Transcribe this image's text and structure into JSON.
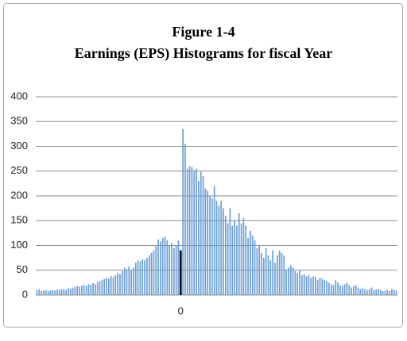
{
  "chart_data": {
    "type": "bar",
    "title": "Figure 1-4",
    "subtitle": "Earnings (EPS) Histograms for fiscal Year",
    "categories": [
      null,
      null,
      null,
      null,
      null,
      null,
      null,
      null,
      null,
      null,
      null,
      null,
      null,
      null,
      null,
      null,
      null,
      null,
      null,
      null,
      null,
      null,
      null,
      null,
      null,
      null,
      null,
      null,
      null,
      null,
      null,
      null,
      null,
      null,
      null,
      null,
      null,
      null,
      null,
      null,
      null,
      null,
      null,
      null,
      null,
      null,
      null,
      null,
      null,
      null,
      null,
      null,
      null,
      null,
      null,
      null,
      null,
      null,
      null,
      null,
      null,
      null,
      null,
      null,
      "0",
      null,
      null,
      null,
      null,
      null,
      null,
      null,
      null,
      null,
      null,
      null,
      null,
      null,
      null,
      null,
      null,
      null,
      null,
      null,
      null,
      null,
      null,
      null,
      null,
      null,
      null,
      null,
      null,
      null,
      null,
      null,
      null,
      null,
      null,
      null,
      null,
      null,
      null,
      null,
      null,
      null,
      null,
      null,
      null,
      null,
      null,
      null,
      null,
      null,
      null,
      null,
      null,
      null,
      null,
      null,
      null,
      null,
      null,
      null,
      null,
      null,
      null,
      null,
      null,
      null,
      null,
      null,
      null,
      null,
      null,
      null,
      null,
      null,
      null,
      null,
      null,
      null,
      null,
      null,
      null,
      null,
      null,
      null,
      null,
      null,
      null,
      null,
      null,
      null,
      null,
      null,
      null,
      null,
      null,
      null,
      null
    ],
    "values": [
      10,
      12,
      8,
      9,
      10,
      8,
      9,
      10,
      9,
      11,
      10,
      12,
      12,
      10,
      14,
      13,
      15,
      16,
      18,
      17,
      19,
      20,
      18,
      22,
      21,
      24,
      22,
      26,
      28,
      30,
      32,
      35,
      33,
      38,
      36,
      40,
      45,
      42,
      48,
      55,
      52,
      58,
      50,
      55,
      65,
      70,
      68,
      72,
      70,
      75,
      80,
      85,
      90,
      98,
      112,
      108,
      115,
      118,
      110,
      100,
      105,
      95,
      100,
      110,
      90,
      335,
      305,
      255,
      260,
      258,
      250,
      255,
      230,
      250,
      240,
      215,
      210,
      200,
      195,
      220,
      190,
      180,
      190,
      175,
      160,
      145,
      175,
      140,
      150,
      140,
      165,
      145,
      155,
      140,
      115,
      130,
      120,
      110,
      95,
      100,
      85,
      75,
      95,
      80,
      70,
      90,
      65,
      80,
      90,
      85,
      80,
      50,
      55,
      60,
      55,
      48,
      45,
      50,
      40,
      42,
      38,
      40,
      35,
      38,
      36,
      30,
      35,
      33,
      30,
      28,
      25,
      22,
      20,
      30,
      25,
      20,
      18,
      22,
      25,
      20,
      15,
      18,
      20,
      15,
      12,
      14,
      12,
      10,
      12,
      15,
      10,
      11,
      12,
      10,
      8,
      9,
      10,
      8,
      12,
      10,
      9
    ],
    "color": "#6b9fd6",
    "highlight_color": "#000000",
    "ylim": [
      0,
      400
    ],
    "yticks": [
      0,
      50,
      100,
      150,
      200,
      250,
      300,
      350,
      400
    ],
    "grid": true
  }
}
